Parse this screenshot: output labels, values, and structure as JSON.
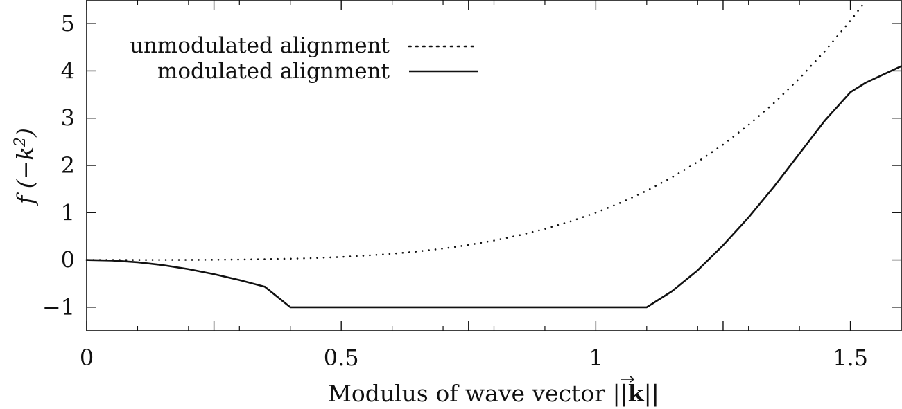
{
  "chart_data": {
    "type": "line",
    "title": "",
    "xlabel": "Modulus of wave vector ||k||",
    "ylabel": "f(−k²)",
    "xlim": [
      0,
      1.6
    ],
    "ylim": [
      -1.5,
      5.5
    ],
    "xticks": [
      0,
      0.25,
      0.5,
      0.75,
      1,
      1.25,
      1.5
    ],
    "xtick_labels": [
      "0",
      "",
      "0.5",
      "",
      "1",
      "",
      "1.5"
    ],
    "xminor_ticks": [
      0.1,
      0.2,
      0.3,
      0.4,
      0.6,
      0.7,
      0.8,
      0.9,
      1.1,
      1.2,
      1.3,
      1.4
    ],
    "yticks": [
      -1,
      0,
      1,
      2,
      3,
      4,
      5
    ],
    "ytick_labels": [
      "−1",
      "0",
      "1",
      "2",
      "3",
      "4",
      "5"
    ],
    "legend_position": "top-left",
    "grid": false,
    "x": [
      0,
      0.05,
      0.1,
      0.15,
      0.2,
      0.25,
      0.3,
      0.35,
      0.4,
      0.45,
      0.5,
      0.55,
      0.6,
      0.65,
      0.7,
      0.75,
      0.8,
      0.85,
      0.9,
      0.95,
      1.0,
      1.05,
      1.1,
      1.15,
      1.2,
      1.25,
      1.3,
      1.35,
      1.4,
      1.45,
      1.5,
      1.53,
      1.55,
      1.6
    ],
    "series": [
      {
        "name": "unmodulated alignment",
        "style": "dotted",
        "color": "#111111",
        "values": [
          0,
          1e-05,
          0.0001,
          0.0005,
          0.0016,
          0.004,
          0.0081,
          0.015,
          0.0256,
          0.041,
          0.0625,
          0.0915,
          0.1296,
          0.1785,
          0.2401,
          0.3164,
          0.4096,
          0.522,
          0.6561,
          0.8145,
          1.0,
          1.2155,
          1.4641,
          1.749,
          2.0736,
          2.4414,
          2.8561,
          3.3215,
          3.8416,
          4.4205,
          5.0625,
          5.4798,
          null,
          null
        ]
      },
      {
        "name": "modulated alignment",
        "style": "solid",
        "color": "#111111",
        "values": [
          0,
          -0.0124,
          -0.0494,
          -0.1105,
          -0.1947,
          -0.3004,
          -0.4255,
          -0.5677,
          -1.0,
          -1.0,
          -1.0,
          -1.0,
          -1.0,
          -1.0,
          -1.0,
          -1.0,
          -1.0,
          -1.0,
          -1.0,
          -1.0,
          -1.0,
          -1.0,
          -1.0,
          -0.66,
          -0.22,
          0.31,
          0.9,
          1.55,
          2.25,
          2.95,
          3.55,
          3.75,
          3.85,
          4.1
        ]
      }
    ]
  }
}
